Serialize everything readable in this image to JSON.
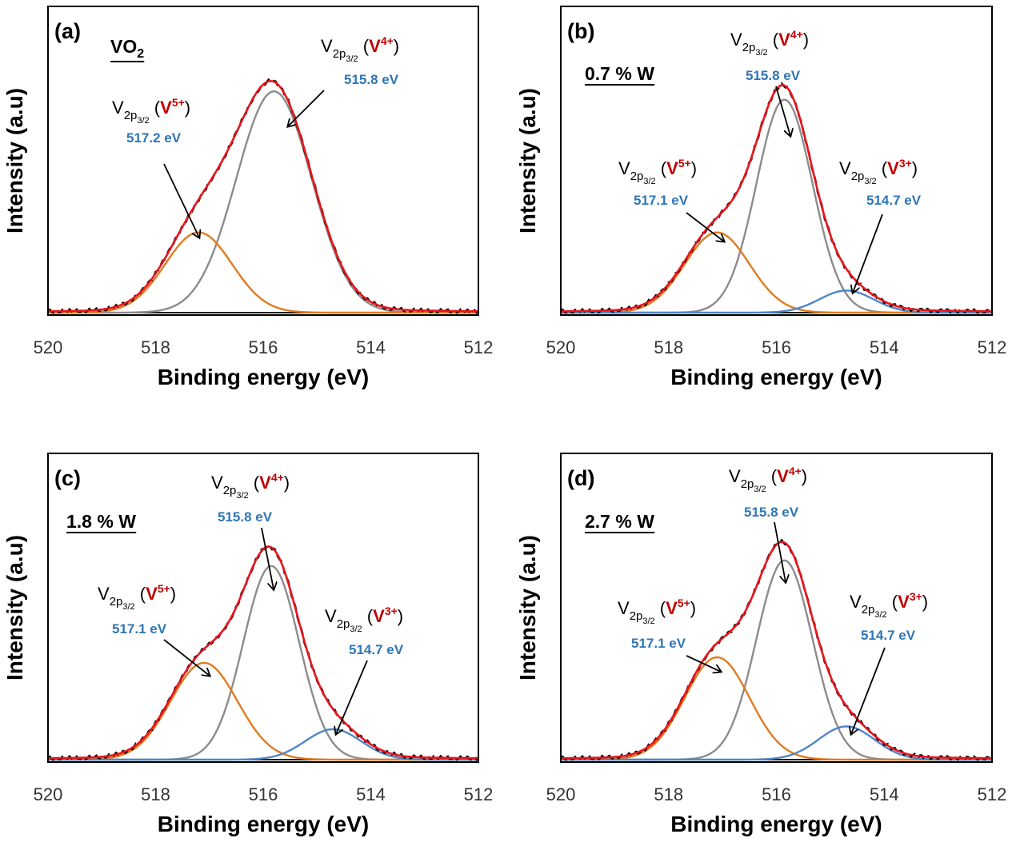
{
  "chart_data": [
    {
      "type": "line",
      "panel_label": "(a)",
      "sample_label": "VO2",
      "xlabel": "Binding energy (eV)",
      "ylabel": "Intensity (a.u)",
      "xlim": [
        520,
        512
      ],
      "x_ticks": [
        "520",
        "518",
        "516",
        "514",
        "512"
      ],
      "fit_components": [
        {
          "label": "V2p3/2 (V4+)",
          "center": 515.8,
          "amplitude": 0.8,
          "sigma": 0.7,
          "color": "#8c8c8c"
        },
        {
          "label": "V2p3/2 (V5+)",
          "center": 517.2,
          "amplitude": 0.29,
          "sigma": 0.62,
          "color": "#e07b20"
        }
      ],
      "annotations": [
        {
          "base": "V",
          "sub": "2p",
          "subsub": "3/2",
          "ion": "V",
          "charge": "4+",
          "energy": "515.8 eV"
        },
        {
          "base": "V",
          "sub": "2p",
          "subsub": "3/2",
          "ion": "V",
          "charge": "5+",
          "energy": "517.2 eV"
        }
      ]
    },
    {
      "type": "line",
      "panel_label": "(b)",
      "sample_label": "0.7 % W",
      "xlabel": "Binding energy (eV)",
      "ylabel": "Intensity (a.u)",
      "xlim": [
        520,
        512
      ],
      "x_ticks": [
        "520",
        "518",
        "516",
        "514",
        "512"
      ],
      "fit_components": [
        {
          "label": "V2p3/2 (V4+)",
          "center": 515.85,
          "amplitude": 0.77,
          "sigma": 0.52,
          "color": "#8c8c8c"
        },
        {
          "label": "V2p3/2 (V5+)",
          "center": 517.1,
          "amplitude": 0.29,
          "sigma": 0.6,
          "color": "#e07b20"
        },
        {
          "label": "V2p3/2 (V3+)",
          "center": 514.7,
          "amplitude": 0.08,
          "sigma": 0.5,
          "color": "#4f86c6"
        }
      ],
      "annotations": [
        {
          "base": "V",
          "sub": "2p",
          "subsub": "3/2",
          "ion": "V",
          "charge": "4+",
          "energy": "515.8 eV"
        },
        {
          "base": "V",
          "sub": "2p",
          "subsub": "3/2",
          "ion": "V",
          "charge": "5+",
          "energy": "517.1 eV"
        },
        {
          "base": "V",
          "sub": "2p",
          "subsub": "3/2",
          "ion": "V",
          "charge": "3+",
          "energy": "514.7 eV"
        }
      ]
    },
    {
      "type": "line",
      "panel_label": "(c)",
      "sample_label": "1.8 % W",
      "xlabel": "Binding energy (eV)",
      "ylabel": "Intensity (a.u)",
      "xlim": [
        520,
        512
      ],
      "x_ticks": [
        "520",
        "518",
        "516",
        "514",
        "512"
      ],
      "fit_components": [
        {
          "label": "V2p3/2 (V4+)",
          "center": 515.85,
          "amplitude": 0.7,
          "sigma": 0.52,
          "color": "#8c8c8c"
        },
        {
          "label": "V2p3/2 (V5+)",
          "center": 517.1,
          "amplitude": 0.35,
          "sigma": 0.62,
          "color": "#e07b20"
        },
        {
          "label": "V2p3/2 (V3+)",
          "center": 514.7,
          "amplitude": 0.11,
          "sigma": 0.52,
          "color": "#4f86c6"
        }
      ],
      "annotations": [
        {
          "base": "V",
          "sub": "2p",
          "subsub": "3/2",
          "ion": "V",
          "charge": "4+",
          "energy": "515.8 eV"
        },
        {
          "base": "V",
          "sub": "2p",
          "subsub": "3/2",
          "ion": "V",
          "charge": "5+",
          "energy": "517.1 eV"
        },
        {
          "base": "V",
          "sub": "2p",
          "subsub": "3/2",
          "ion": "V",
          "charge": "3+",
          "energy": "514.7 eV"
        }
      ]
    },
    {
      "type": "line",
      "panel_label": "(d)",
      "sample_label": "2.7 % W",
      "xlabel": "Binding energy (eV)",
      "ylabel": "Intensity (a.u)",
      "xlim": [
        520,
        512
      ],
      "x_ticks": [
        "520",
        "518",
        "516",
        "514",
        "512"
      ],
      "fit_components": [
        {
          "label": "V2p3/2 (V4+)",
          "center": 515.85,
          "amplitude": 0.72,
          "sigma": 0.52,
          "color": "#8c8c8c"
        },
        {
          "label": "V2p3/2 (V5+)",
          "center": 517.1,
          "amplitude": 0.37,
          "sigma": 0.6,
          "color": "#e07b20"
        },
        {
          "label": "V2p3/2 (V3+)",
          "center": 514.7,
          "amplitude": 0.12,
          "sigma": 0.52,
          "color": "#4f86c6"
        }
      ],
      "annotations": [
        {
          "base": "V",
          "sub": "2p",
          "subsub": "3/2",
          "ion": "V",
          "charge": "4+",
          "energy": "515.8 eV"
        },
        {
          "base": "V",
          "sub": "2p",
          "subsub": "3/2",
          "ion": "V",
          "charge": "5+",
          "energy": "517.1 eV"
        },
        {
          "base": "V",
          "sub": "2p",
          "subsub": "3/2",
          "ion": "V",
          "charge": "3+",
          "energy": "514.7 eV"
        }
      ]
    }
  ],
  "colors": {
    "envelope": "#e8141c",
    "experimental": "#000000",
    "baseline": "#000000"
  }
}
